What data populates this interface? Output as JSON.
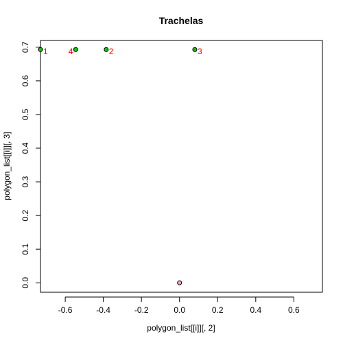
{
  "chart_data": {
    "type": "scatter",
    "title": "Trachelas",
    "xlabel": "polygon_list[[i]][, 2]",
    "ylabel": "polygon_list[[i]][, 3]",
    "xlim": [
      -0.73,
      0.75
    ],
    "ylim": [
      -0.028,
      0.72
    ],
    "xticks": [
      -0.6,
      -0.4,
      -0.2,
      0.0,
      0.2,
      0.4,
      0.6
    ],
    "xtick_labels": [
      "-0.6",
      "-0.4",
      "-0.2",
      "0.0",
      "0.2",
      "0.4",
      "0.6"
    ],
    "yticks": [
      0.0,
      0.1,
      0.2,
      0.3,
      0.4,
      0.5,
      0.6,
      0.7
    ],
    "ytick_labels": [
      "0.0",
      "0.1",
      "0.2",
      "0.3",
      "0.4",
      "0.5",
      "0.6",
      "0.7"
    ],
    "grid": false,
    "points": [
      {
        "x": -0.73,
        "y": 0.693,
        "label": "1",
        "label_side": "right",
        "color": "#00cc00"
      },
      {
        "x": -0.385,
        "y": 0.693,
        "label": "2",
        "label_side": "right",
        "color": "#00cc00"
      },
      {
        "x": 0.08,
        "y": 0.693,
        "label": "3",
        "label_side": "right",
        "color": "#00cc00"
      },
      {
        "x": -0.545,
        "y": 0.693,
        "label": "4",
        "label_side": "left",
        "color": "#00cc00"
      },
      {
        "x": 0.0,
        "y": 0.0,
        "label": "",
        "label_side": "none",
        "color": "#f4a6c0"
      }
    ],
    "point_outline_color": "#000000",
    "label_color": "#ff0000"
  }
}
